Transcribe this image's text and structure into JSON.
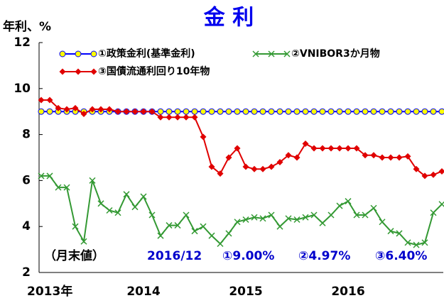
{
  "chart_data": {
    "type": "line",
    "title": "金 利",
    "y_label": "年利、%",
    "annotations": [
      "（月末値）",
      "2016/12",
      "①9.00%",
      "②4.97%",
      "③6.40%"
    ],
    "categories": [
      "2013年",
      null,
      null,
      null,
      null,
      null,
      null,
      null,
      null,
      null,
      null,
      null,
      "2014",
      null,
      null,
      null,
      null,
      null,
      null,
      null,
      null,
      null,
      null,
      null,
      "2015",
      null,
      null,
      null,
      null,
      null,
      null,
      null,
      null,
      null,
      null,
      null,
      "2016",
      null,
      null,
      null,
      null,
      null,
      null,
      null,
      null,
      null,
      null,
      null
    ],
    "ylim": [
      2,
      12
    ],
    "yticks": [
      2,
      4,
      6,
      8,
      10,
      12
    ],
    "grid": false,
    "series": [
      {
        "name": "①政策金利(基準金利)",
        "color": "#0000ff",
        "marker": "circle",
        "marker_color": "#ffff00",
        "values": [
          9,
          9,
          9,
          9,
          9,
          9,
          9,
          9,
          9,
          9,
          9,
          9,
          9,
          9,
          9,
          9,
          9,
          9,
          9,
          9,
          9,
          9,
          9,
          9,
          9,
          9,
          9,
          9,
          9,
          9,
          9,
          9,
          9,
          9,
          9,
          9,
          9,
          9,
          9,
          9,
          9,
          9,
          9,
          9,
          9,
          9,
          9,
          9
        ]
      },
      {
        "name": "②VNIBOR3か月物",
        "color": "#339933",
        "marker": "x",
        "marker_color": "#339933",
        "values": [
          6.2,
          6.2,
          5.7,
          5.7,
          4.0,
          3.35,
          6.0,
          5.0,
          4.7,
          4.6,
          5.4,
          4.85,
          5.3,
          4.5,
          3.6,
          4.05,
          4.05,
          4.5,
          3.8,
          4.0,
          3.6,
          3.25,
          3.7,
          4.2,
          4.3,
          4.4,
          4.35,
          4.5,
          4.0,
          4.35,
          4.3,
          4.4,
          4.5,
          4.15,
          4.5,
          4.9,
          5.1,
          4.5,
          4.5,
          4.8,
          4.2,
          3.8,
          3.7,
          3.3,
          3.2,
          3.3,
          4.6,
          4.97
        ]
      },
      {
        "name": "③国債流通利回り10年物",
        "color": "#e00000",
        "marker": "diamond",
        "marker_color": "#e00000",
        "values": [
          9.5,
          9.5,
          9.15,
          9.1,
          9.15,
          8.9,
          9.1,
          9.1,
          9.1,
          9.0,
          9.0,
          9.0,
          9.0,
          9.0,
          8.75,
          8.75,
          8.75,
          8.75,
          8.75,
          7.9,
          6.6,
          6.3,
          7.0,
          7.4,
          6.6,
          6.5,
          6.5,
          6.6,
          6.8,
          7.1,
          7.0,
          7.6,
          7.4,
          7.4,
          7.4,
          7.4,
          7.4,
          7.4,
          7.1,
          7.1,
          7.0,
          7.0,
          7.0,
          7.05,
          6.5,
          6.2,
          6.25,
          6.4
        ]
      }
    ]
  }
}
